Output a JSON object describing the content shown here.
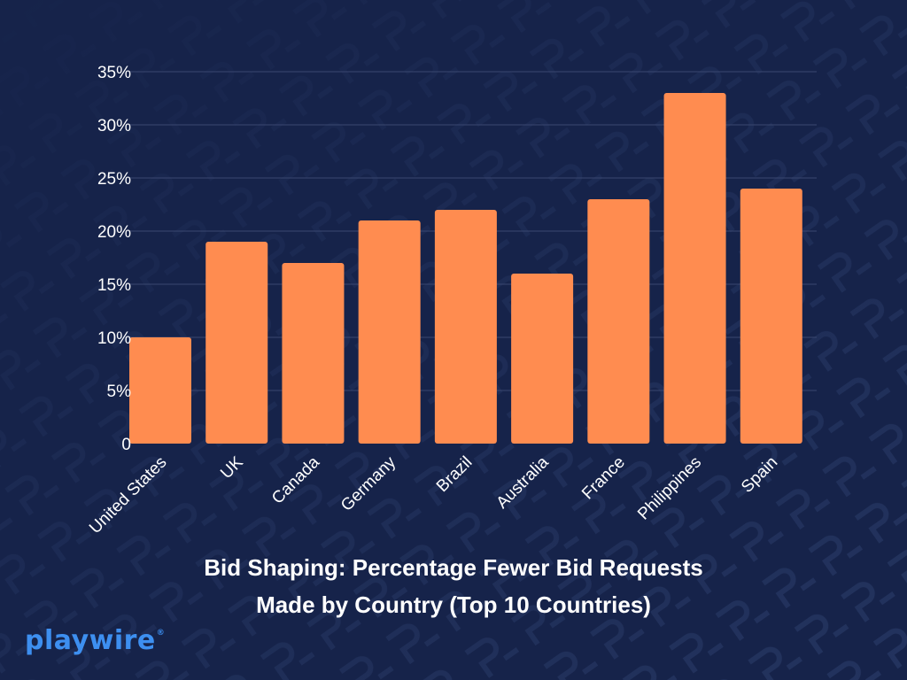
{
  "chart_data": {
    "type": "bar",
    "categories": [
      "United States",
      "UK",
      "Canada",
      "Germany",
      "Brazil",
      "Australia",
      "France",
      "Philippines",
      "Spain"
    ],
    "values": [
      10,
      19,
      17,
      21,
      22,
      16,
      23,
      33,
      24
    ],
    "y_ticks": [
      "0",
      "5%",
      "10%",
      "15%",
      "20%",
      "25%",
      "30%",
      "35%"
    ],
    "ylim": [
      0,
      35
    ],
    "title_lines": [
      "Bid Shaping: Percentage Fewer Bid Requests",
      "Made by Country (Top 10 Countries)"
    ],
    "grid": true,
    "xlabel": "",
    "ylabel": ""
  },
  "colors": {
    "background": "#16234a",
    "bar": "#ff8c50",
    "grid": "#3a4770",
    "text": "#ffffff",
    "brand": "#3d8ff0",
    "pattern": "#23335e"
  },
  "brand": {
    "logo_text": "playwire",
    "logo_mark": "®"
  }
}
